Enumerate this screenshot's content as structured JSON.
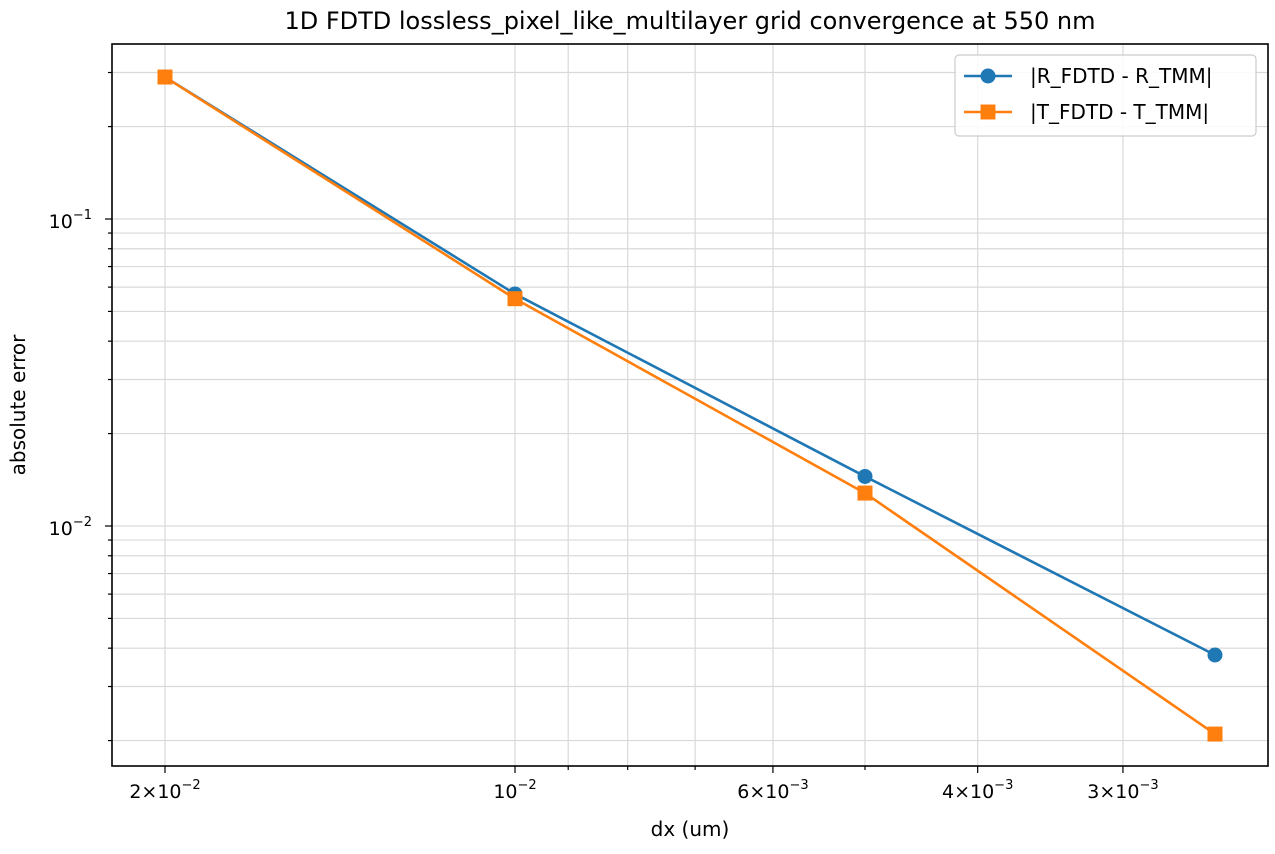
{
  "chart_data": {
    "type": "line",
    "title": "1D FDTD lossless_pixel_like_multilayer grid convergence at 550 nm",
    "xlabel": "dx (um)",
    "ylabel": "absolute error",
    "xscale": "log",
    "yscale": "log",
    "x_inverted": true,
    "grid": "both major and minor",
    "legend_position": "top-right",
    "x": [
      0.02,
      0.01,
      0.005,
      0.0025
    ],
    "series": [
      {
        "name": "|R_FDTD - R_TMM|",
        "color": "#1f77b4",
        "marker": "circle",
        "values": [
          0.29,
          0.057,
          0.0145,
          0.0038
        ]
      },
      {
        "name": "|T_FDTD - T_TMM|",
        "color": "#ff7f0e",
        "marker": "square",
        "values": [
          0.29,
          0.055,
          0.0128,
          0.0021
        ]
      }
    ],
    "x_ticks": [
      {
        "value": 0.02,
        "mantissa": "2",
        "exp": "−2"
      },
      {
        "value": 0.01,
        "mantissa": "",
        "exp": "−2"
      },
      {
        "value": 0.006,
        "mantissa": "6",
        "exp": "−3"
      },
      {
        "value": 0.004,
        "mantissa": "4",
        "exp": "−3"
      },
      {
        "value": 0.003,
        "mantissa": "3",
        "exp": "−3"
      }
    ],
    "y_ticks": [
      {
        "value": 0.1,
        "exp": "−1"
      },
      {
        "value": 0.01,
        "exp": "−2"
      }
    ]
  }
}
